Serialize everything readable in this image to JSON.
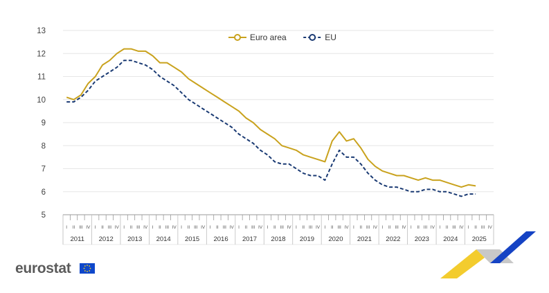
{
  "colors": {
    "euro_area": "#c9a21d",
    "eu": "#1a3a73",
    "grid": "#e6e6e6",
    "axis_band": "#e8e8e8"
  },
  "brand": {
    "name": "eurostat",
    "icon": "eu-flag-icon"
  },
  "chart_data": {
    "type": "line",
    "title": "",
    "xlabel": "",
    "ylabel": "",
    "ylim": [
      5,
      13
    ],
    "yticks": [
      5,
      6,
      7,
      8,
      9,
      10,
      11,
      12,
      13
    ],
    "grid": true,
    "legend_position": "top-center",
    "x_unit": "quarter",
    "years": [
      "2011",
      "2012",
      "2013",
      "2014",
      "2015",
      "2016",
      "2017",
      "2018",
      "2019",
      "2020",
      "2021",
      "2022",
      "2023",
      "2024",
      "2025"
    ],
    "quarter_labels": [
      "I",
      "II",
      "III",
      "IV"
    ],
    "x_range": [
      "2011-Q1",
      "2025-Q4"
    ],
    "x": [
      "2011-Q1",
      "2011-Q2",
      "2011-Q3",
      "2011-Q4",
      "2012-Q1",
      "2012-Q2",
      "2012-Q3",
      "2012-Q4",
      "2013-Q1",
      "2013-Q2",
      "2013-Q3",
      "2013-Q4",
      "2014-Q1",
      "2014-Q2",
      "2014-Q3",
      "2014-Q4",
      "2015-Q1",
      "2015-Q2",
      "2015-Q3",
      "2015-Q4",
      "2016-Q1",
      "2016-Q2",
      "2016-Q3",
      "2016-Q4",
      "2017-Q1",
      "2017-Q2",
      "2017-Q3",
      "2017-Q4",
      "2018-Q1",
      "2018-Q2",
      "2018-Q3",
      "2018-Q4",
      "2019-Q1",
      "2019-Q2",
      "2019-Q3",
      "2019-Q4",
      "2020-Q1",
      "2020-Q2",
      "2020-Q3",
      "2020-Q4",
      "2021-Q1",
      "2021-Q2",
      "2021-Q3",
      "2021-Q4",
      "2022-Q1",
      "2022-Q2",
      "2022-Q3",
      "2022-Q4",
      "2023-Q1",
      "2023-Q2",
      "2023-Q3",
      "2023-Q4",
      "2024-Q1",
      "2024-Q2",
      "2024-Q3",
      "2024-Q4",
      "2025-Q1",
      "2025-Q2"
    ],
    "series": [
      {
        "name": "Euro area",
        "style": "solid",
        "values": [
          10.1,
          10.0,
          10.2,
          10.7,
          11.0,
          11.5,
          11.7,
          12.0,
          12.2,
          12.2,
          12.1,
          12.1,
          11.9,
          11.6,
          11.6,
          11.4,
          11.2,
          10.9,
          10.7,
          10.5,
          10.3,
          10.1,
          9.9,
          9.7,
          9.5,
          9.2,
          9.0,
          8.7,
          8.5,
          8.3,
          8.0,
          7.9,
          7.8,
          7.6,
          7.5,
          7.4,
          7.3,
          8.2,
          8.6,
          8.2,
          8.3,
          7.9,
          7.4,
          7.1,
          6.9,
          6.8,
          6.7,
          6.7,
          6.6,
          6.5,
          6.6,
          6.5,
          6.5,
          6.4,
          6.3,
          6.2,
          6.3,
          6.25
        ]
      },
      {
        "name": "EU",
        "style": "dashed",
        "values": [
          9.9,
          9.9,
          10.1,
          10.4,
          10.8,
          11.0,
          11.2,
          11.4,
          11.7,
          11.7,
          11.6,
          11.5,
          11.3,
          11.0,
          10.8,
          10.6,
          10.3,
          10.0,
          9.8,
          9.6,
          9.4,
          9.2,
          9.0,
          8.8,
          8.5,
          8.3,
          8.1,
          7.8,
          7.6,
          7.3,
          7.2,
          7.2,
          7.0,
          6.8,
          6.7,
          6.7,
          6.5,
          7.2,
          7.8,
          7.5,
          7.5,
          7.2,
          6.8,
          6.5,
          6.3,
          6.2,
          6.2,
          6.1,
          6.0,
          6.0,
          6.1,
          6.1,
          6.0,
          6.0,
          5.9,
          5.8,
          5.9,
          5.9
        ]
      }
    ]
  }
}
